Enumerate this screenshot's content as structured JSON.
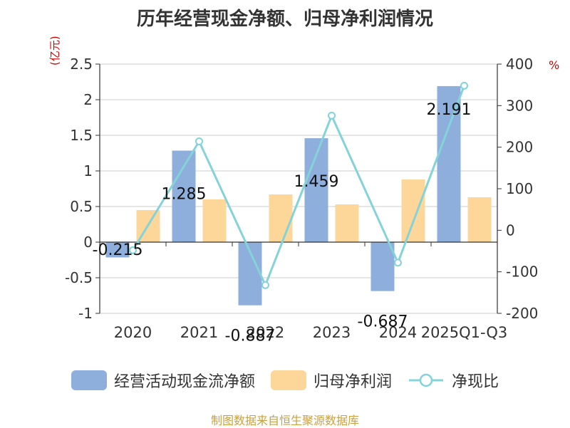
{
  "chart_data": {
    "type": "bar",
    "title": "历年经营现金净额、归母净利润情况",
    "y_unit_left": "(亿元)",
    "y_unit_right": "%",
    "categories": [
      "2020",
      "2021",
      "2022",
      "2023",
      "2024",
      "2025Q1-Q3"
    ],
    "ylim_left": [
      -1,
      2.5
    ],
    "yticks_left": [
      "2.5",
      "2",
      "1.5",
      "1",
      "0.5",
      "0",
      "-0.5",
      "-1"
    ],
    "yticks_left_values": [
      2.5,
      2,
      1.5,
      1,
      0.5,
      0,
      -0.5,
      -1
    ],
    "ylim_right": [
      -200,
      400
    ],
    "yticks_right": [
      "400",
      "300",
      "200",
      "100",
      "0",
      "-100",
      "-200"
    ],
    "yticks_right_values": [
      400,
      300,
      200,
      100,
      0,
      -100,
      -200
    ],
    "series": [
      {
        "name": "经营活动现金流净额",
        "kind": "bar",
        "axis": "left",
        "color": "#8eaedc",
        "values": [
          -0.215,
          1.285,
          -0.887,
          1.459,
          -0.687,
          2.191
        ],
        "labels": [
          "-0.215",
          "1.285",
          "-0.887",
          "1.459",
          "-0.687",
          "2.191"
        ]
      },
      {
        "name": "归母净利润",
        "kind": "bar",
        "axis": "left",
        "color": "#fdd699",
        "values": [
          0.45,
          0.6,
          0.67,
          0.53,
          0.88,
          0.63
        ]
      },
      {
        "name": "净现比",
        "kind": "line",
        "axis": "right",
        "color": "#84d3d8",
        "values": [
          -48,
          214,
          -132,
          276,
          -78,
          348
        ]
      }
    ]
  },
  "source": "制图数据来自恒生聚源数据库"
}
